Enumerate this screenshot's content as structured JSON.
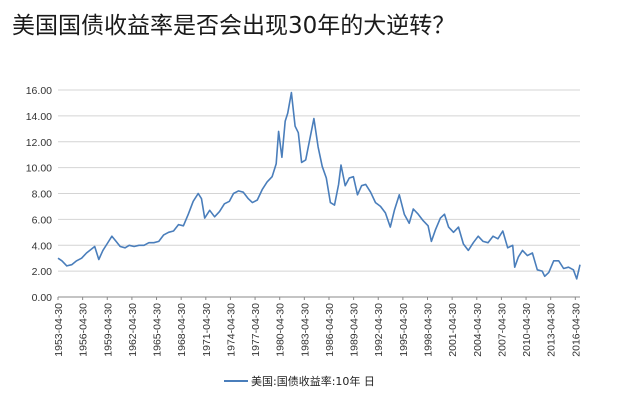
{
  "title": "美国国债收益率是否会出现30年的大逆转？",
  "chart_data": {
    "type": "line",
    "title": "",
    "xlabel": "",
    "ylabel": "",
    "ylim": [
      0,
      16
    ],
    "yticks": [
      "0.00",
      "2.00",
      "4.00",
      "6.00",
      "8.00",
      "10.00",
      "12.00",
      "14.00",
      "16.00"
    ],
    "xticks": [
      "1953-04-30",
      "1956-04-30",
      "1959-04-30",
      "1962-04-30",
      "1965-04-30",
      "1968-04-30",
      "1971-04-30",
      "1974-04-30",
      "1977-04-30",
      "1980-04-30",
      "1983-04-30",
      "1986-04-30",
      "1989-04-30",
      "1992-04-30",
      "1995-04-30",
      "1998-04-30",
      "2001-04-30",
      "2004-04-30",
      "2007-04-30",
      "2010-04-30",
      "2013-04-30",
      "2016-04-30"
    ],
    "xrange": [
      1953.33,
      2016.9
    ],
    "grid": true,
    "legend_position": "bottom",
    "line_color": "#4a7ebb",
    "series": [
      {
        "name": "美国:国债收益率:10年 日",
        "x": [
          1953.33,
          1953.8,
          1954.4,
          1955.0,
          1955.6,
          1956.2,
          1956.8,
          1957.4,
          1957.8,
          1958.3,
          1958.8,
          1959.3,
          1959.9,
          1960.4,
          1960.9,
          1961.5,
          1962.0,
          1962.6,
          1963.2,
          1963.8,
          1964.4,
          1965.0,
          1965.6,
          1966.2,
          1966.8,
          1967.4,
          1968.0,
          1968.6,
          1969.2,
          1969.8,
          1970.4,
          1970.8,
          1971.2,
          1971.8,
          1972.4,
          1973.0,
          1973.6,
          1974.2,
          1974.7,
          1975.3,
          1975.9,
          1976.5,
          1977.0,
          1977.6,
          1978.2,
          1978.8,
          1979.4,
          1979.9,
          1980.2,
          1980.6,
          1981.0,
          1981.3,
          1981.75,
          1982.2,
          1982.6,
          1983.0,
          1983.5,
          1984.0,
          1984.5,
          1985.0,
          1985.5,
          1986.0,
          1986.5,
          1987.0,
          1987.5,
          1987.8,
          1988.3,
          1988.8,
          1989.3,
          1989.8,
          1990.3,
          1990.8,
          1991.4,
          1992.0,
          1992.6,
          1993.2,
          1993.8,
          1994.3,
          1994.9,
          1995.5,
          1996.1,
          1996.6,
          1997.2,
          1997.8,
          1998.4,
          1998.8,
          1999.3,
          1999.9,
          2000.4,
          2000.9,
          2001.5,
          2002.1,
          2002.7,
          2003.3,
          2003.9,
          2004.5,
          2005.1,
          2005.7,
          2006.3,
          2006.9,
          2007.5,
          2008.1,
          2008.7,
          2008.95,
          2009.4,
          2009.9,
          2010.5,
          2011.1,
          2011.7,
          2012.3,
          2012.6,
          2013.1,
          2013.7,
          2014.3,
          2014.9,
          2015.5,
          2016.1,
          2016.5,
          2016.9
        ],
        "values": [
          3.0,
          2.8,
          2.4,
          2.5,
          2.8,
          3.0,
          3.4,
          3.7,
          3.9,
          2.9,
          3.6,
          4.1,
          4.7,
          4.3,
          3.9,
          3.8,
          4.0,
          3.9,
          4.0,
          4.0,
          4.2,
          4.2,
          4.3,
          4.8,
          5.0,
          5.1,
          5.6,
          5.5,
          6.4,
          7.4,
          8.0,
          7.6,
          6.1,
          6.7,
          6.2,
          6.6,
          7.2,
          7.4,
          8.0,
          8.2,
          8.1,
          7.6,
          7.3,
          7.5,
          8.3,
          8.9,
          9.3,
          10.3,
          12.8,
          10.8,
          13.6,
          14.2,
          15.8,
          13.2,
          12.7,
          10.4,
          10.6,
          12.2,
          13.8,
          11.6,
          10.1,
          9.2,
          7.3,
          7.1,
          8.7,
          10.2,
          8.6,
          9.2,
          9.3,
          7.9,
          8.6,
          8.7,
          8.1,
          7.3,
          7.0,
          6.5,
          5.4,
          6.7,
          7.9,
          6.4,
          5.7,
          6.8,
          6.4,
          5.9,
          5.5,
          4.3,
          5.2,
          6.1,
          6.4,
          5.4,
          5.0,
          5.4,
          4.1,
          3.6,
          4.2,
          4.7,
          4.3,
          4.2,
          4.7,
          4.5,
          5.1,
          3.8,
          4.0,
          2.3,
          3.1,
          3.6,
          3.2,
          3.4,
          2.1,
          2.0,
          1.6,
          1.9,
          2.8,
          2.8,
          2.2,
          2.3,
          2.1,
          1.4,
          2.5
        ]
      }
    ]
  }
}
